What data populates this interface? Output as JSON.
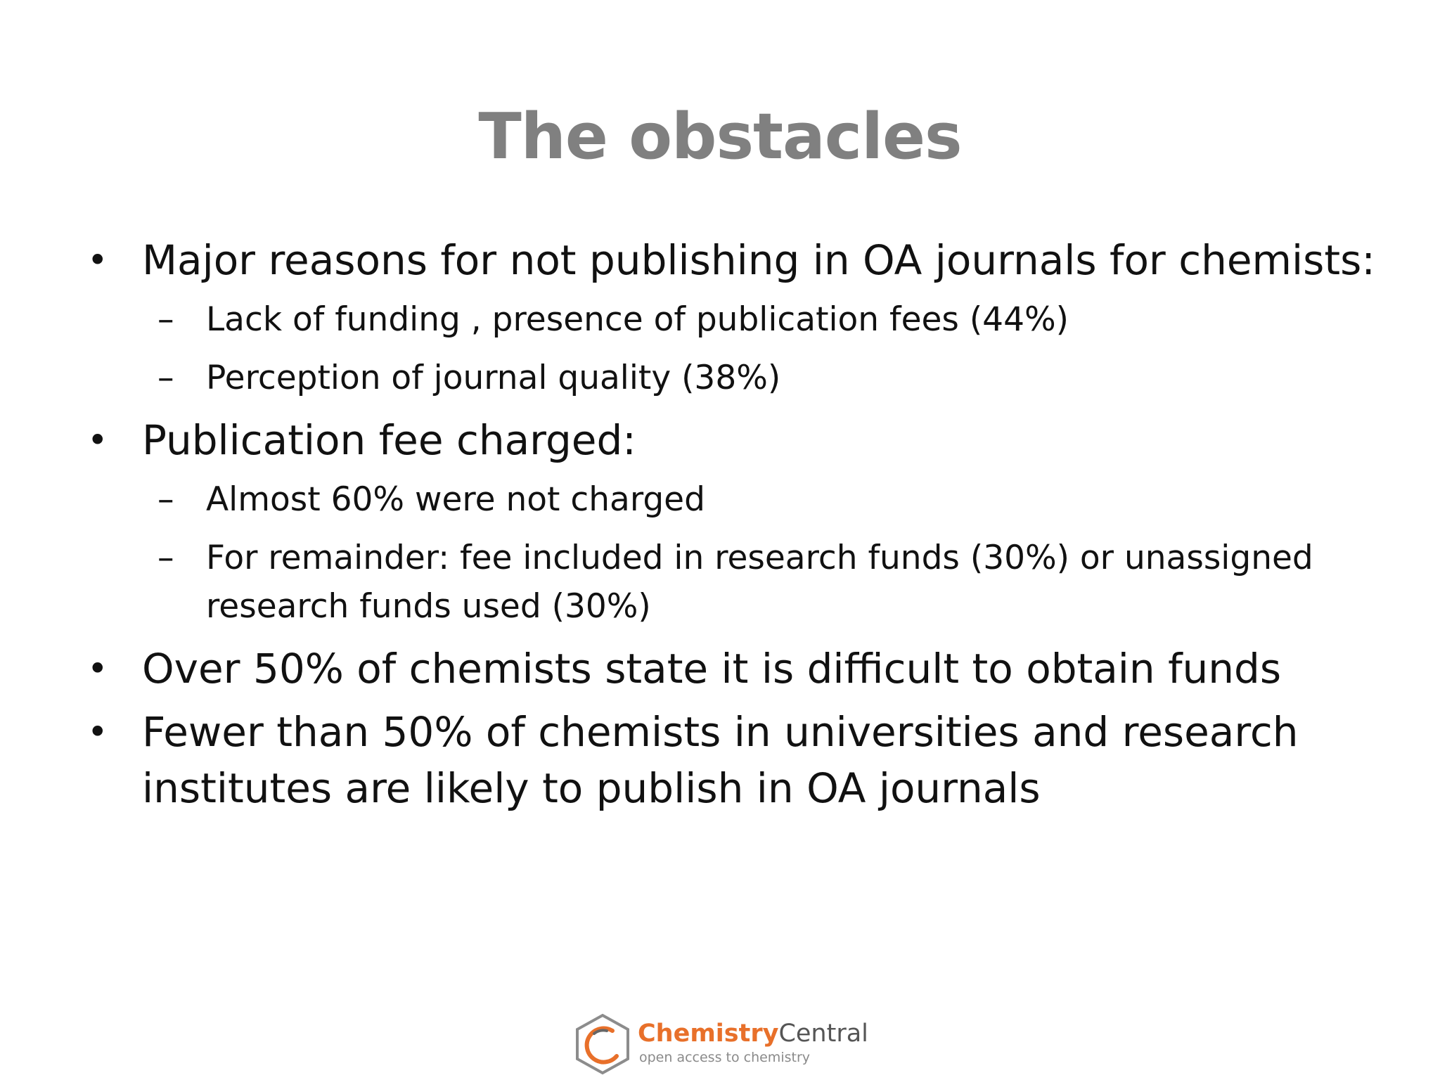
{
  "slide": {
    "title": "The obstacles",
    "bullets": [
      {
        "text": "Major reasons for not publishing in OA journals for chemists:",
        "sub": [
          "Lack of funding , presence of publication fees (44%)",
          "Perception of journal quality (38%)"
        ]
      },
      {
        "text": "Publication fee charged:",
        "sub": [
          "Almost 60% were not charged",
          "For remainder: fee included in research funds (30%) or unassigned research funds used (30%)"
        ]
      },
      {
        "text": "Over 50% of chemists state it is difficult to obtain funds",
        "sub": []
      },
      {
        "text": "Fewer than 50% of chemists in universities and research institutes are likely to publish in OA journals",
        "sub": []
      }
    ],
    "bullet_symbol": "•",
    "dash_symbol": "–"
  },
  "logo": {
    "name_part1": "Chemistry",
    "name_part2": "Central",
    "tagline": "open access to chemistry",
    "accent_color": "#e8702a",
    "icon": "hexagon-ring-icon"
  }
}
